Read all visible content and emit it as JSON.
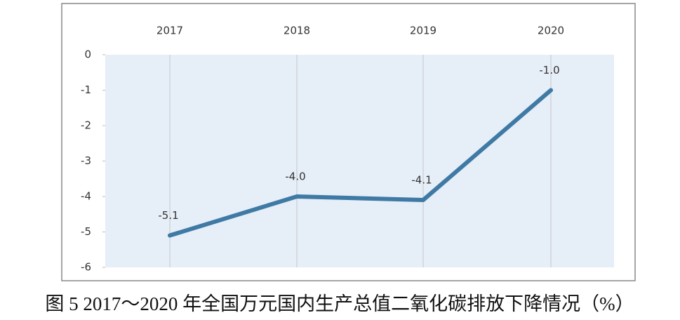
{
  "chart_data": {
    "type": "line",
    "title": "图 5 2017～2020 年全国万元国内生产总值二氧化碳排放下降情况（%）",
    "categories": [
      "2017",
      "2018",
      "2019",
      "2020"
    ],
    "series": [
      {
        "color": "#3f7aa5",
        "values": [
          -5.1,
          -4.0,
          -4.1,
          -1.0
        ],
        "value_labels": [
          "-5.1",
          "-4.0",
          "-4.1",
          "-1.0"
        ]
      }
    ],
    "ylim": [
      -6,
      0
    ],
    "yticks": [
      0,
      -1,
      -2,
      -3,
      -4,
      -5,
      -6
    ]
  }
}
